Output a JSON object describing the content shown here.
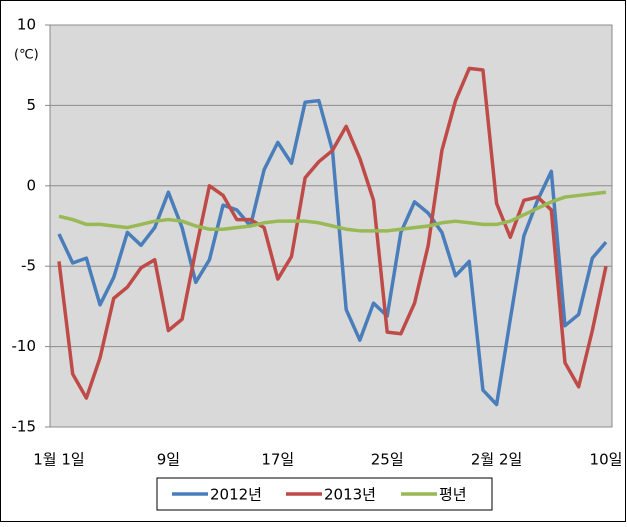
{
  "chart_data": {
    "type": "line",
    "annotation": "(℃)",
    "categories": [
      "1월 1일",
      null,
      null,
      null,
      null,
      null,
      null,
      null,
      "9일",
      null,
      null,
      null,
      null,
      null,
      null,
      null,
      "17일",
      null,
      null,
      null,
      null,
      null,
      null,
      null,
      "25일",
      null,
      null,
      null,
      null,
      null,
      null,
      null,
      "2월 2일",
      null,
      null,
      null,
      null,
      null,
      null,
      null,
      "10일"
    ],
    "series": [
      {
        "name": "2012년",
        "color": "#4a7ebb",
        "values": [
          -3.0,
          -4.8,
          -4.5,
          -7.4,
          -5.7,
          -2.9,
          -3.7,
          -2.6,
          -0.4,
          -2.6,
          -6.0,
          -4.6,
          -1.2,
          -1.5,
          -2.5,
          1.0,
          2.7,
          1.4,
          5.2,
          5.3,
          2.2,
          -7.7,
          -9.6,
          -7.3,
          -8.1,
          -2.9,
          -1.0,
          -1.7,
          -2.9,
          -5.6,
          -4.7,
          -12.7,
          -13.6,
          -8.3,
          -3.1,
          -0.9,
          0.9,
          -8.7,
          -8.0,
          -4.5,
          -3.5
        ]
      },
      {
        "name": "2013년",
        "color": "#be4b48",
        "values": [
          -4.7,
          -11.7,
          -13.2,
          -10.7,
          -7.0,
          -6.3,
          -5.1,
          -4.6,
          -9.0,
          -8.3,
          -4.0,
          0,
          -0.6,
          -2.1,
          -2.1,
          -2.6,
          -5.8,
          -4.4,
          0.5,
          1.5,
          2.2,
          3.7,
          1.7,
          -0.9,
          -9.1,
          -9.2,
          -7.3,
          -3.7,
          2.2,
          5.3,
          7.3,
          7.2,
          -1.1,
          -3.2,
          -0.9,
          -0.7,
          -1.5,
          -11.0,
          -12.5,
          -9.0,
          -5.0
        ]
      },
      {
        "name": "평년",
        "color": "#98b954",
        "values": [
          -1.9,
          -2.1,
          -2.4,
          -2.4,
          -2.5,
          -2.6,
          -2.4,
          -2.2,
          -2.1,
          -2.2,
          -2.5,
          -2.7,
          -2.7,
          -2.6,
          -2.5,
          -2.3,
          -2.2,
          -2.2,
          -2.2,
          -2.3,
          -2.5,
          -2.7,
          -2.8,
          -2.8,
          -2.8,
          -2.7,
          -2.6,
          -2.5,
          -2.3,
          -2.2,
          -2.3,
          -2.4,
          -2.4,
          -2.2,
          -1.8,
          -1.4,
          -1.0,
          -0.7,
          -0.6,
          -0.5,
          -0.4
        ]
      }
    ],
    "ylim": [
      -15,
      10
    ],
    "yticks": [
      -15,
      -10,
      -5,
      0,
      5,
      10
    ],
    "grid": true,
    "plot_background": "#d9d9d9",
    "legend": "bottom"
  }
}
